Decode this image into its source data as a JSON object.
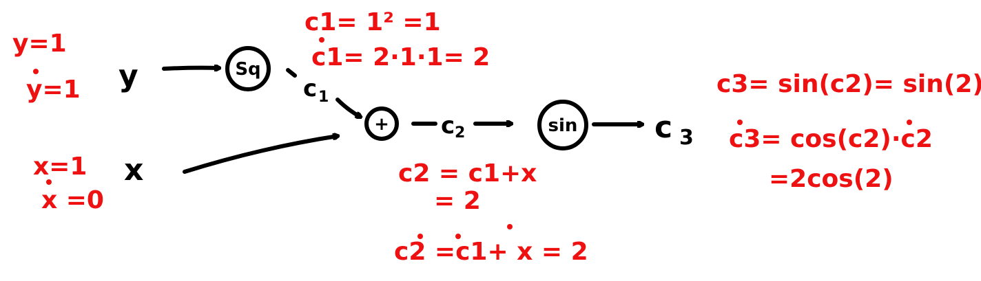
{
  "colors": {
    "ink": "#000000",
    "annotation": "#ee1111",
    "background": "#ffffff"
  },
  "graph": {
    "inputs": [
      {
        "id": "y",
        "label": "y",
        "value": "y=1",
        "tangent": "y=1",
        "tangent_dot": true
      },
      {
        "id": "x",
        "label": "x",
        "value": "x=1",
        "tangent": "x =0",
        "tangent_dot": true
      }
    ],
    "nodes": [
      {
        "id": "sq",
        "label": "Sq"
      },
      {
        "id": "add",
        "label": "+"
      },
      {
        "id": "sin",
        "label": "sin"
      }
    ],
    "intermediates": [
      {
        "id": "c1",
        "base": "c",
        "sub": "1"
      },
      {
        "id": "c2",
        "base": "c",
        "sub": "2"
      },
      {
        "id": "c3",
        "base": "c",
        "sub": "3"
      }
    ],
    "edges": [
      {
        "from": "y",
        "to": "sq"
      },
      {
        "from": "sq",
        "to": "c1"
      },
      {
        "from": "c1",
        "to": "add"
      },
      {
        "from": "x",
        "to": "add"
      },
      {
        "from": "add",
        "to": "c2"
      },
      {
        "from": "c2",
        "to": "sin"
      },
      {
        "from": "sin",
        "to": "c3"
      }
    ]
  },
  "annotations": {
    "c1_value": "c1= 1² =1",
    "c1_tangent": "c1= 2·1·1= 2",
    "c2_value_line1": "c2 = c1+x",
    "c2_value_line2": "= 2",
    "c2_tangent": "c2 =c1+ x = 2",
    "c3_value": "c3= sin(c2)= sin(2)",
    "c3_tangent_line1": "c3= cos(c2)·c2",
    "c3_tangent_line2": "=2cos(2)"
  }
}
